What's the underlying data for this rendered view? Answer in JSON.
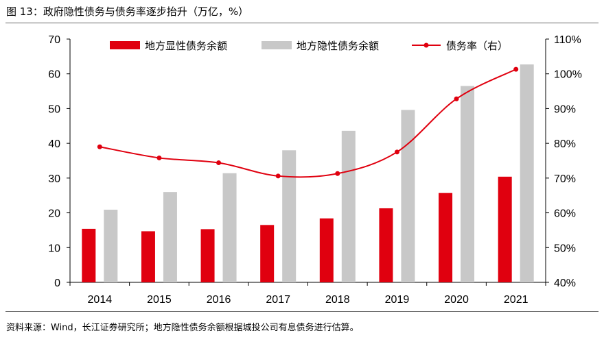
{
  "title": "图 13：政府隐性债务与债务率逐步抬升（万亿，%）",
  "source": "资料来源：Wind，长江证券研究所；地方隐性债务余额根据城投公司有息债务进行估算。",
  "colors": {
    "explicit": "#e0000f",
    "hidden": "#c8c8c8",
    "ratio": "#e0000f"
  },
  "chart_data": {
    "type": "bar",
    "categories": [
      "2014",
      "2015",
      "2016",
      "2017",
      "2018",
      "2019",
      "2020",
      "2021"
    ],
    "series": [
      {
        "name": "地方显性债务余额",
        "type": "bar",
        "axis": "left",
        "values": [
          15.4,
          14.7,
          15.3,
          16.5,
          18.4,
          21.3,
          25.7,
          30.4
        ]
      },
      {
        "name": "地方隐性债务余额",
        "type": "bar",
        "axis": "left",
        "values": [
          20.9,
          26.0,
          31.4,
          38.0,
          43.6,
          49.6,
          56.5,
          62.7
        ]
      },
      {
        "name": "债务率（右）",
        "type": "line",
        "axis": "right",
        "values": [
          79.0,
          75.8,
          74.4,
          70.6,
          71.3,
          77.5,
          92.8,
          101.3
        ]
      }
    ],
    "y_left": {
      "min": 0,
      "max": 70,
      "ticks": [
        0,
        10,
        20,
        30,
        40,
        50,
        60,
        70
      ],
      "tick_labels": [
        "0",
        "10",
        "20",
        "30",
        "40",
        "50",
        "60",
        "70"
      ]
    },
    "y_right": {
      "min": 40,
      "max": 110,
      "ticks": [
        40,
        50,
        60,
        70,
        80,
        90,
        100,
        110
      ],
      "tick_labels": [
        "40%",
        "50%",
        "60%",
        "70%",
        "80%",
        "90%",
        "100%",
        "110%"
      ]
    },
    "legend_position": "top",
    "grid": false
  }
}
